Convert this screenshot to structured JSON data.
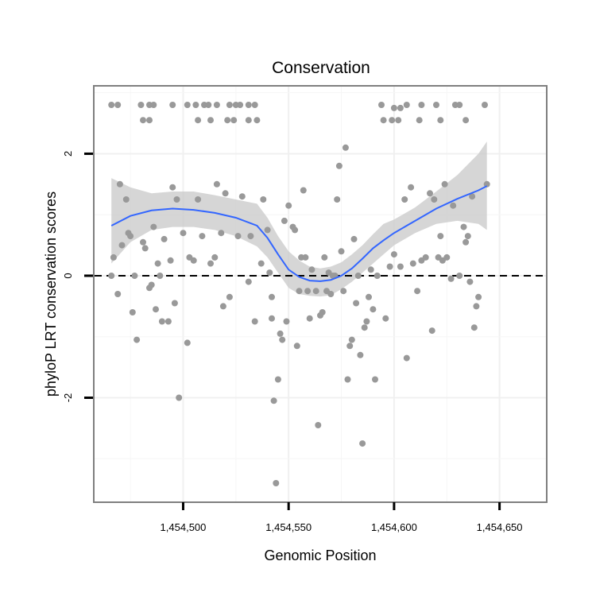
{
  "chart_data": {
    "type": "scatter",
    "title": "Conservation",
    "xlabel": "Genomic Position",
    "ylabel": "phyloP LRT conservation scores",
    "xlim": [
      1454458,
      1454672
    ],
    "ylim": [
      -3.7,
      3.1
    ],
    "xticks": [
      1454500,
      1454550,
      1454600,
      1454650
    ],
    "xtick_labels": [
      "1,454,500",
      "1,454,550",
      "1,454,600",
      "1,454,650"
    ],
    "yticks": [
      -2,
      0,
      2
    ],
    "ytick_labels": [
      "-2",
      "0",
      "2"
    ],
    "grid": true,
    "reference_line": 0,
    "point_color": "#999999",
    "smooth_color": "#3366ff",
    "band_color": "#cccccc",
    "points": [
      [
        1454466,
        2.8
      ],
      [
        1454469,
        2.8
      ],
      [
        1454480,
        2.8
      ],
      [
        1454484,
        2.8
      ],
      [
        1454486,
        2.8
      ],
      [
        1454495,
        2.8
      ],
      [
        1454502,
        2.8
      ],
      [
        1454506,
        2.8
      ],
      [
        1454510,
        2.8
      ],
      [
        1454512,
        2.8
      ],
      [
        1454516,
        2.8
      ],
      [
        1454522,
        2.8
      ],
      [
        1454525,
        2.8
      ],
      [
        1454527,
        2.8
      ],
      [
        1454531,
        2.8
      ],
      [
        1454534,
        2.8
      ],
      [
        1454481,
        2.55
      ],
      [
        1454484,
        2.55
      ],
      [
        1454507,
        2.55
      ],
      [
        1454513,
        2.55
      ],
      [
        1454521,
        2.55
      ],
      [
        1454524,
        2.55
      ],
      [
        1454531,
        2.55
      ],
      [
        1454535,
        2.55
      ],
      [
        1454595,
        2.55
      ],
      [
        1454599,
        2.55
      ],
      [
        1454602,
        2.55
      ],
      [
        1454612,
        2.55
      ],
      [
        1454622,
        2.55
      ],
      [
        1454634,
        2.55
      ],
      [
        1454594,
        2.8
      ],
      [
        1454600,
        2.75
      ],
      [
        1454603,
        2.75
      ],
      [
        1454606,
        2.8
      ],
      [
        1454613,
        2.8
      ],
      [
        1454620,
        2.8
      ],
      [
        1454629,
        2.8
      ],
      [
        1454631,
        2.8
      ],
      [
        1454643,
        2.8
      ],
      [
        1454466,
        0.0
      ],
      [
        1454467,
        0.3
      ],
      [
        1454469,
        -0.3
      ],
      [
        1454470,
        1.5
      ],
      [
        1454471,
        0.5
      ],
      [
        1454473,
        1.25
      ],
      [
        1454474,
        0.7
      ],
      [
        1454475,
        0.65
      ],
      [
        1454476,
        -0.6
      ],
      [
        1454477,
        0.0
      ],
      [
        1454478,
        -1.05
      ],
      [
        1454481,
        0.55
      ],
      [
        1454482,
        0.45
      ],
      [
        1454484,
        -0.2
      ],
      [
        1454485,
        -0.15
      ],
      [
        1454486,
        0.8
      ],
      [
        1454487,
        -0.55
      ],
      [
        1454488,
        0.2
      ],
      [
        1454489,
        0.0
      ],
      [
        1454490,
        -0.75
      ],
      [
        1454491,
        0.6
      ],
      [
        1454493,
        -0.75
      ],
      [
        1454494,
        0.25
      ],
      [
        1454495,
        1.45
      ],
      [
        1454496,
        -0.45
      ],
      [
        1454497,
        1.25
      ],
      [
        1454498,
        -2.0
      ],
      [
        1454500,
        0.7
      ],
      [
        1454502,
        -1.1
      ],
      [
        1454503,
        0.3
      ],
      [
        1454505,
        0.25
      ],
      [
        1454507,
        1.25
      ],
      [
        1454509,
        0.65
      ],
      [
        1454513,
        0.2
      ],
      [
        1454515,
        0.3
      ],
      [
        1454516,
        1.5
      ],
      [
        1454518,
        0.7
      ],
      [
        1454519,
        -0.5
      ],
      [
        1454520,
        1.35
      ],
      [
        1454522,
        -0.35
      ],
      [
        1454526,
        0.65
      ],
      [
        1454528,
        1.3
      ],
      [
        1454531,
        -0.1
      ],
      [
        1454532,
        0.65
      ],
      [
        1454534,
        -0.75
      ],
      [
        1454537,
        0.2
      ],
      [
        1454538,
        1.25
      ],
      [
        1454540,
        0.75
      ],
      [
        1454541,
        0.05
      ],
      [
        1454542,
        -0.35
      ],
      [
        1454542,
        -0.7
      ],
      [
        1454543,
        -2.05
      ],
      [
        1454544,
        -3.4
      ],
      [
        1454545,
        -1.7
      ],
      [
        1454546,
        -0.95
      ],
      [
        1454547,
        -1.05
      ],
      [
        1454548,
        0.9
      ],
      [
        1454549,
        -0.75
      ],
      [
        1454550,
        1.15
      ],
      [
        1454552,
        0.8
      ],
      [
        1454553,
        0.75
      ],
      [
        1454554,
        -1.15
      ],
      [
        1454555,
        -0.25
      ],
      [
        1454556,
        0.3
      ],
      [
        1454557,
        1.4
      ],
      [
        1454558,
        0.3
      ],
      [
        1454559,
        -0.25
      ],
      [
        1454560,
        -0.7
      ],
      [
        1454561,
        0.1
      ],
      [
        1454563,
        -0.25
      ],
      [
        1454564,
        -2.45
      ],
      [
        1454565,
        -0.65
      ],
      [
        1454566,
        -0.6
      ],
      [
        1454567,
        0.3
      ],
      [
        1454568,
        -0.25
      ],
      [
        1454569,
        0.05
      ],
      [
        1454570,
        -0.3
      ],
      [
        1454571,
        0.0
      ],
      [
        1454572,
        0.0
      ],
      [
        1454573,
        1.25
      ],
      [
        1454574,
        1.8
      ],
      [
        1454575,
        0.4
      ],
      [
        1454576,
        -0.25
      ],
      [
        1454577,
        2.1
      ],
      [
        1454578,
        -1.7
      ],
      [
        1454579,
        -1.15
      ],
      [
        1454580,
        -1.05
      ],
      [
        1454581,
        0.6
      ],
      [
        1454582,
        -0.45
      ],
      [
        1454583,
        0.0
      ],
      [
        1454584,
        -1.3
      ],
      [
        1454585,
        -2.75
      ],
      [
        1454586,
        -0.85
      ],
      [
        1454587,
        -0.75
      ],
      [
        1454588,
        -0.35
      ],
      [
        1454589,
        0.1
      ],
      [
        1454590,
        -0.55
      ],
      [
        1454591,
        -1.7
      ],
      [
        1454592,
        0.0
      ],
      [
        1454596,
        -0.7
      ],
      [
        1454598,
        0.15
      ],
      [
        1454600,
        0.35
      ],
      [
        1454603,
        0.15
      ],
      [
        1454605,
        1.25
      ],
      [
        1454606,
        -1.35
      ],
      [
        1454608,
        1.45
      ],
      [
        1454609,
        0.2
      ],
      [
        1454611,
        -0.25
      ],
      [
        1454613,
        0.25
      ],
      [
        1454615,
        0.3
      ],
      [
        1454617,
        1.35
      ],
      [
        1454618,
        -0.9
      ],
      [
        1454619,
        1.25
      ],
      [
        1454621,
        0.3
      ],
      [
        1454622,
        0.65
      ],
      [
        1454623,
        0.25
      ],
      [
        1454624,
        1.5
      ],
      [
        1454625,
        0.3
      ],
      [
        1454627,
        -0.05
      ],
      [
        1454628,
        1.15
      ],
      [
        1454631,
        0.0
      ],
      [
        1454633,
        0.8
      ],
      [
        1454634,
        0.55
      ],
      [
        1454635,
        0.65
      ],
      [
        1454636,
        -0.1
      ],
      [
        1454637,
        1.3
      ],
      [
        1454638,
        -0.85
      ],
      [
        1454639,
        -0.5
      ],
      [
        1454640,
        -0.35
      ],
      [
        1454644,
        1.5
      ]
    ],
    "smooth": {
      "x": [
        1454466,
        1454475,
        1454485,
        1454495,
        1454505,
        1454515,
        1454525,
        1454535,
        1454540,
        1454545,
        1454550,
        1454555,
        1454560,
        1454565,
        1454570,
        1454575,
        1454580,
        1454585,
        1454590,
        1454595,
        1454600,
        1454610,
        1454620,
        1454630,
        1454640,
        1454644
      ],
      "y": [
        0.82,
        0.98,
        1.07,
        1.1,
        1.08,
        1.03,
        0.95,
        0.82,
        0.62,
        0.35,
        0.1,
        -0.02,
        -0.08,
        -0.09,
        -0.07,
        0.0,
        0.12,
        0.28,
        0.45,
        0.58,
        0.7,
        0.9,
        1.1,
        1.26,
        1.4,
        1.47
      ],
      "lower": [
        0.2,
        0.55,
        0.75,
        0.8,
        0.8,
        0.75,
        0.65,
        0.48,
        0.3,
        0.05,
        -0.2,
        -0.3,
        -0.33,
        -0.34,
        -0.32,
        -0.22,
        -0.1,
        0.05,
        0.2,
        0.35,
        0.5,
        0.7,
        0.85,
        0.9,
        0.85,
        0.75
      ],
      "upper": [
        1.6,
        1.45,
        1.35,
        1.38,
        1.38,
        1.32,
        1.25,
        1.18,
        0.95,
        0.65,
        0.4,
        0.25,
        0.15,
        0.12,
        0.15,
        0.22,
        0.35,
        0.5,
        0.68,
        0.85,
        0.92,
        1.12,
        1.38,
        1.65,
        2.0,
        2.2
      ]
    }
  }
}
